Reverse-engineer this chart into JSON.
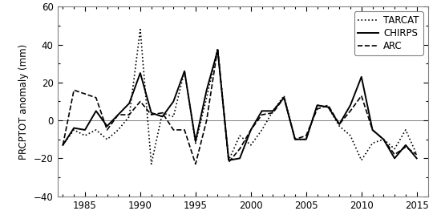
{
  "years": [
    1983,
    1984,
    1985,
    1986,
    1987,
    1988,
    1989,
    1990,
    1991,
    1992,
    1993,
    1994,
    1995,
    1996,
    1997,
    1998,
    1999,
    2000,
    2001,
    2002,
    2003,
    2004,
    2005,
    2006,
    2007,
    2008,
    2009,
    2010,
    2011,
    2012,
    2013,
    2014,
    2015
  ],
  "TARCAT": [
    -13,
    -5,
    -8,
    -5,
    -10,
    -5,
    2,
    48,
    -23,
    4,
    2,
    26,
    -12,
    12,
    38,
    -21,
    -8,
    -13,
    -5,
    5,
    13,
    -10,
    -10,
    8,
    7,
    -3,
    -8,
    -21,
    -12,
    -10,
    -15,
    -5,
    -18
  ],
  "CHIRPS": [
    -13,
    -4,
    -5,
    5,
    -3,
    3,
    9,
    25,
    4,
    2,
    10,
    26,
    -11,
    16,
    37,
    -21,
    -20,
    -5,
    5,
    5,
    12,
    -10,
    -10,
    8,
    7,
    -2,
    8,
    23,
    -5,
    -10,
    -20,
    -13,
    -20
  ],
  "ARC": [
    -13,
    16,
    14,
    12,
    -5,
    3,
    3,
    10,
    3,
    4,
    -5,
    -5,
    -23,
    0,
    38,
    -22,
    -15,
    -5,
    3,
    4,
    12,
    -10,
    -8,
    6,
    8,
    -2,
    5,
    13,
    -5,
    -10,
    -18,
    -14,
    -18
  ],
  "ylim": [
    -40,
    60
  ],
  "yticks": [
    -40,
    -20,
    0,
    20,
    40,
    60
  ],
  "ylabel": "PRCPTOT anomaly (mm)",
  "line_color": "black",
  "legend_labels": [
    "TARCAT",
    "CHIRPS",
    "ARC"
  ],
  "xlim": [
    1982.5,
    2016
  ],
  "xticks": [
    1985,
    1990,
    1995,
    2000,
    2005,
    2010,
    2015
  ],
  "xticklabels": [
    "1985",
    "1990",
    "1995",
    "2000",
    "2005",
    "2010",
    "2015"
  ]
}
